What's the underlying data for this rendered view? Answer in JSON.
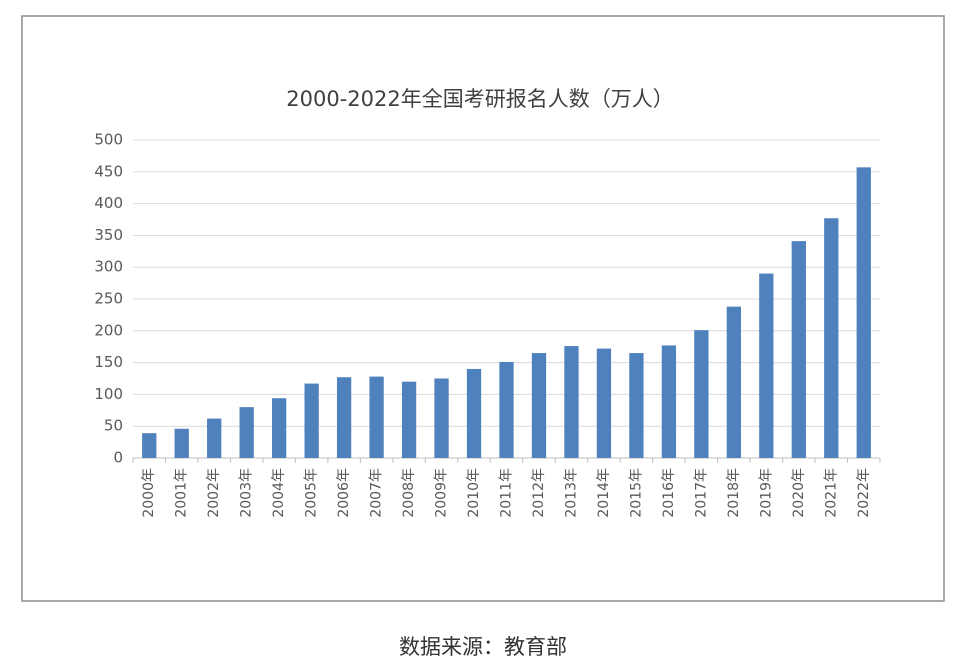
{
  "chart_data": {
    "type": "bar",
    "title": "2000-2022年全国考研报名人数（万人）",
    "categories": [
      "2000年",
      "2001年",
      "2002年",
      "2003年",
      "2004年",
      "2005年",
      "2006年",
      "2007年",
      "2008年",
      "2009年",
      "2010年",
      "2011年",
      "2012年",
      "2013年",
      "2014年",
      "2015年",
      "2016年",
      "2017年",
      "2018年",
      "2019年",
      "2020年",
      "2021年",
      "2022年"
    ],
    "values": [
      39,
      46,
      62,
      80,
      94,
      117,
      127,
      128,
      120,
      125,
      140,
      151,
      165,
      176,
      172,
      165,
      177,
      201,
      238,
      290,
      341,
      377,
      457
    ],
    "color": "#4f81bd",
    "ylim": [
      0,
      500
    ],
    "yticks": [
      0,
      50,
      100,
      150,
      200,
      250,
      300,
      350,
      400,
      450,
      500
    ],
    "grid": true,
    "source": "数据来源：教育部"
  }
}
